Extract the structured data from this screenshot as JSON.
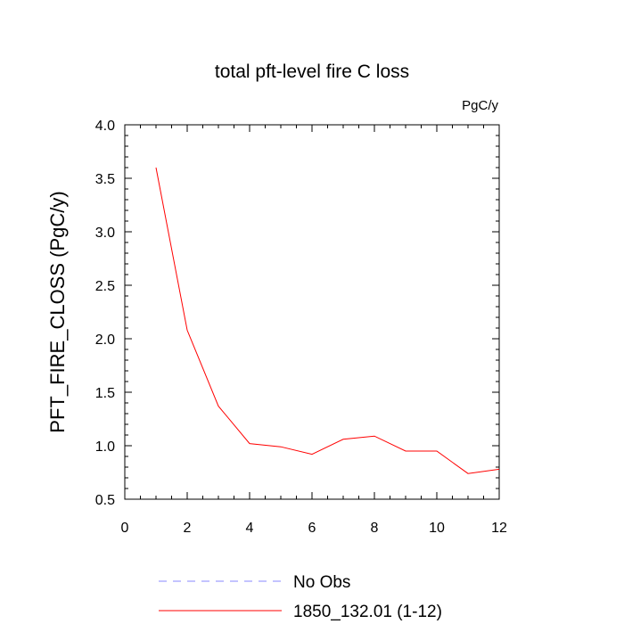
{
  "chart_data": {
    "type": "line",
    "title": "total pft-level fire C loss",
    "units_label": "PgC/y",
    "xlabel": "",
    "ylabel": "PFT_FIRE_CLOSS  (PgC/y)",
    "xlim": [
      0,
      12
    ],
    "ylim": [
      0.5,
      4.0
    ],
    "x_ticks": [
      0,
      2,
      4,
      6,
      8,
      10,
      12
    ],
    "x_tick_labels": [
      "0",
      "2",
      "4",
      "6",
      "8",
      "10",
      "12"
    ],
    "y_ticks": [
      0.5,
      1.0,
      1.5,
      2.0,
      2.5,
      3.0,
      3.5,
      4.0
    ],
    "y_tick_labels": [
      "0.5",
      "1.0",
      "1.5",
      "2.0",
      "2.5",
      "3.0",
      "3.5",
      "4.0"
    ],
    "grid": false,
    "legend_position": "bottom",
    "series": [
      {
        "name": "No Obs",
        "color": "#8888ff",
        "style": "dashed",
        "x": [],
        "values": []
      },
      {
        "name": "1850_132.01 (1-12)",
        "color": "#ff0000",
        "style": "solid",
        "x": [
          1,
          2,
          3,
          4,
          5,
          6,
          7,
          8,
          9,
          10,
          11,
          12
        ],
        "values": [
          3.6,
          2.08,
          1.37,
          1.02,
          0.99,
          0.92,
          1.06,
          1.09,
          0.95,
          0.95,
          0.74,
          0.78
        ]
      }
    ]
  }
}
